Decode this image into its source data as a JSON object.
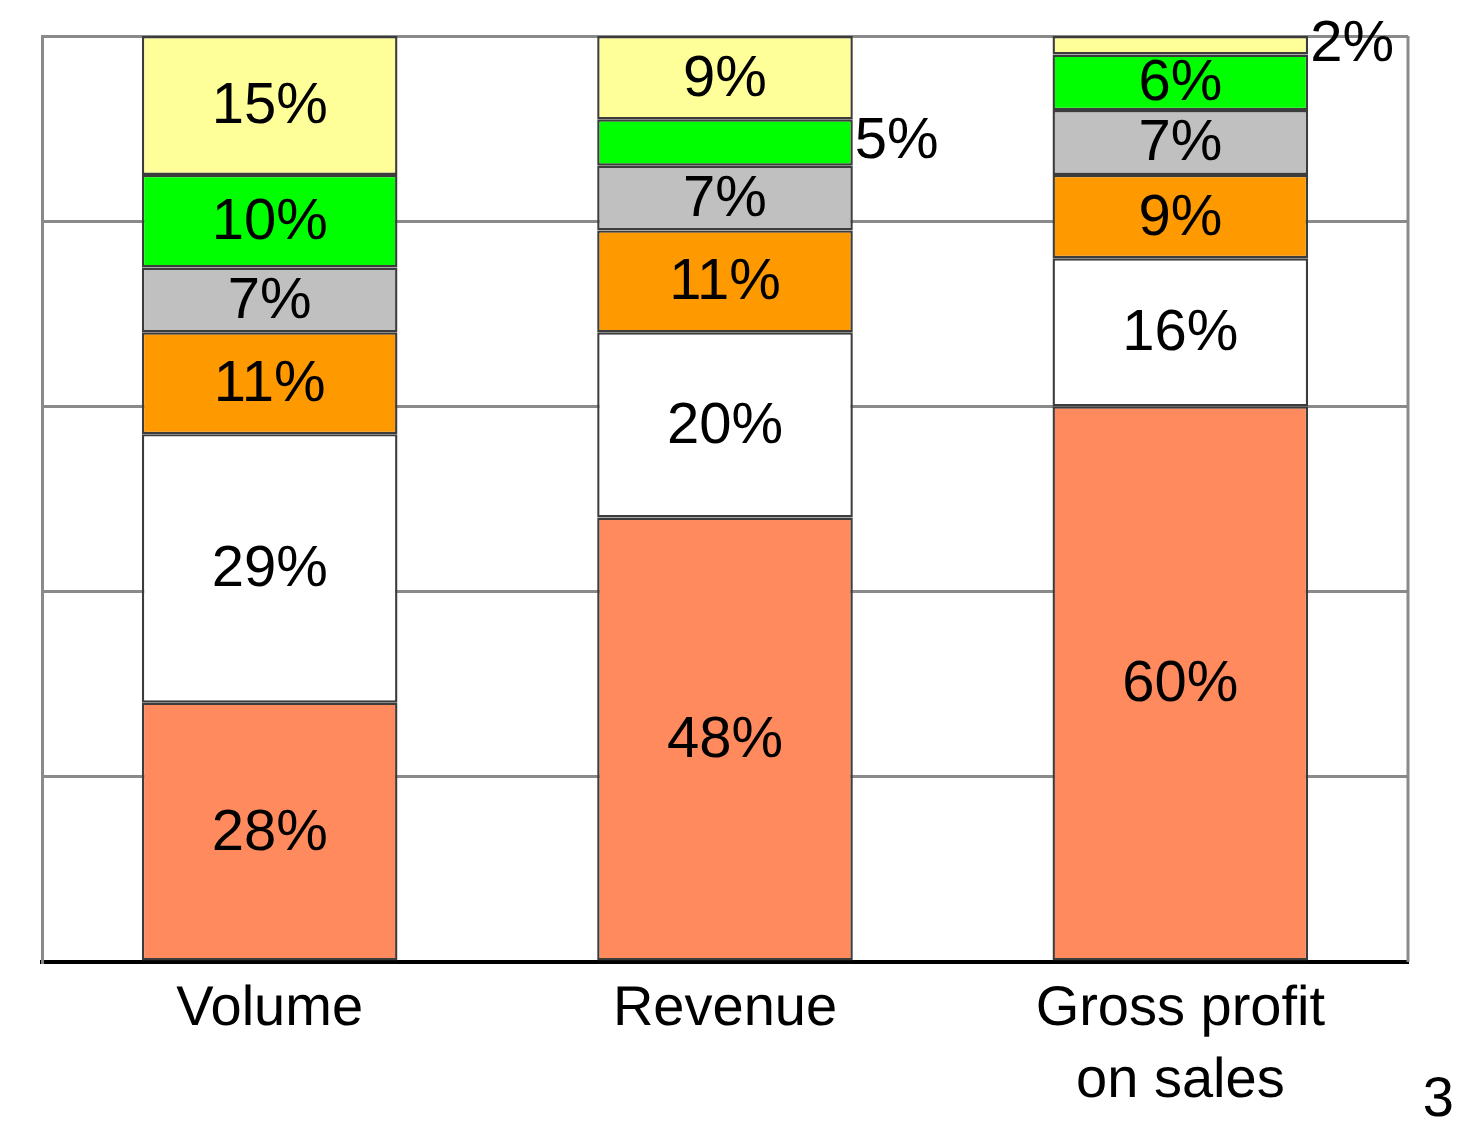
{
  "chart_data": {
    "type": "bar",
    "stacked": true,
    "categories": [
      "Volume",
      "Revenue",
      "Gross profit on sales"
    ],
    "series": [
      {
        "color": "#fe8a5e",
        "values": [
          28,
          48,
          60
        ],
        "value_labels": [
          "28%",
          "48%",
          "60%"
        ]
      },
      {
        "color": "#ffffff",
        "values": [
          29,
          20,
          16
        ],
        "value_labels": [
          "29%",
          "20%",
          "16%"
        ]
      },
      {
        "color": "#ff9900",
        "values": [
          11,
          11,
          9
        ],
        "value_labels": [
          "11%",
          "11%",
          "9%"
        ]
      },
      {
        "color": "#c0c0c0",
        "values": [
          7,
          7,
          7
        ],
        "value_labels": [
          "7%",
          "7%",
          "7%"
        ]
      },
      {
        "color": "#00ff00",
        "values": [
          10,
          5,
          6
        ],
        "value_labels": [
          "10%",
          "5%",
          "6%"
        ]
      },
      {
        "color": "#ffff99",
        "values": [
          15,
          9,
          2
        ],
        "value_labels": [
          "15%",
          "9%",
          "2%"
        ]
      }
    ],
    "ylim": [
      0,
      100
    ],
    "yticks": [
      {
        "value": 0,
        "label": null
      },
      {
        "value": 20,
        "label": null
      },
      {
        "value": 40,
        "label": null
      },
      {
        "value": 60,
        "label": null
      },
      {
        "value": 80,
        "label": null
      },
      {
        "value": 100,
        "label": null
      }
    ],
    "grid": "y",
    "tick_labels": "x",
    "annotations": [
      "3"
    ]
  }
}
